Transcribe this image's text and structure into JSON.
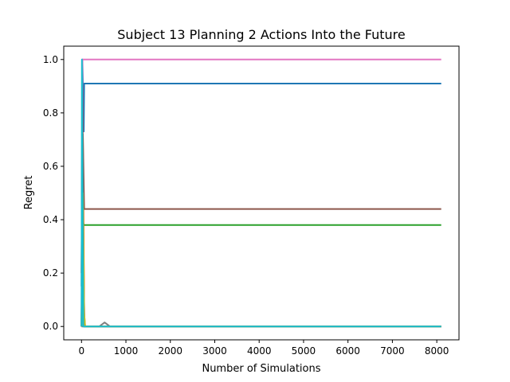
{
  "chart_data": {
    "type": "line",
    "title": "Subject 13 Planning 2 Actions Into the Future",
    "xlabel": "Number of Simulations",
    "ylabel": "Regret",
    "xlim": [
      -400,
      8500
    ],
    "ylim": [
      -0.05,
      1.05
    ],
    "xticks": [
      0,
      1000,
      2000,
      3000,
      4000,
      5000,
      6000,
      7000,
      8000
    ],
    "yticks": [
      0.0,
      0.2,
      0.4,
      0.6,
      0.8,
      1.0
    ],
    "grid": false,
    "legend": "none",
    "series": [
      {
        "color": "#1f77b4",
        "points": [
          [
            0,
            0.15
          ],
          [
            20,
            1.0
          ],
          [
            50,
            0.73
          ],
          [
            60,
            0.91
          ],
          [
            8100,
            0.91
          ]
        ]
      },
      {
        "color": "#ff7f0e",
        "points": [
          [
            0,
            0.0
          ],
          [
            30,
            0.72
          ],
          [
            60,
            0.05
          ],
          [
            80,
            0.0
          ],
          [
            8100,
            0.0
          ]
        ]
      },
      {
        "color": "#2ca02c",
        "points": [
          [
            0,
            0.0
          ],
          [
            20,
            0.4
          ],
          [
            50,
            0.38
          ],
          [
            8100,
            0.38
          ]
        ]
      },
      {
        "color": "#d62728",
        "points": [
          [
            0,
            0.2
          ],
          [
            20,
            0.9
          ],
          [
            60,
            0.0
          ],
          [
            8100,
            0.0
          ]
        ]
      },
      {
        "color": "#9467bd",
        "points": [
          [
            0,
            0.0
          ],
          [
            30,
            0.3
          ],
          [
            70,
            0.0
          ],
          [
            8100,
            0.0
          ]
        ]
      },
      {
        "color": "#8c564b",
        "points": [
          [
            0,
            0.0
          ],
          [
            30,
            0.72
          ],
          [
            60,
            0.44
          ],
          [
            8100,
            0.44
          ]
        ]
      },
      {
        "color": "#e377c2",
        "points": [
          [
            0,
            0.0
          ],
          [
            20,
            1.0
          ],
          [
            8100,
            1.0
          ]
        ]
      },
      {
        "color": "#7f7f7f",
        "points": [
          [
            0,
            0.0
          ],
          [
            400,
            0.0
          ],
          [
            520,
            0.015
          ],
          [
            640,
            0.0
          ],
          [
            8100,
            0.0
          ]
        ]
      },
      {
        "color": "#bcbd22",
        "points": [
          [
            0,
            0.0
          ],
          [
            30,
            0.5
          ],
          [
            60,
            0.05
          ],
          [
            80,
            0.0
          ],
          [
            8100,
            0.0
          ]
        ]
      },
      {
        "color": "#17becf",
        "points": [
          [
            0,
            0.0
          ],
          [
            10,
            1.0
          ],
          [
            40,
            0.0
          ],
          [
            8100,
            0.0
          ]
        ]
      }
    ]
  }
}
